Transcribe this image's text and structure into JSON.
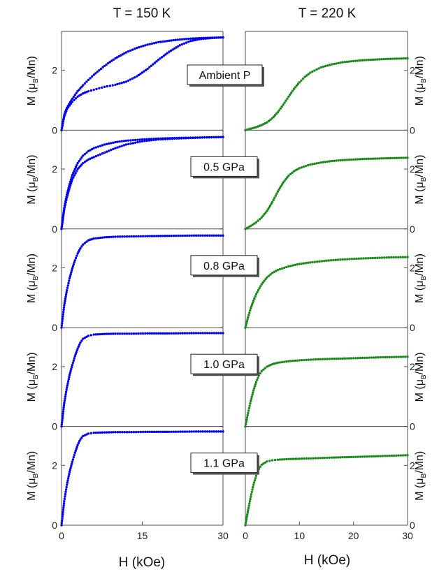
{
  "figure": {
    "left_title": "T = 150 K",
    "right_title": "T = 220 K",
    "left_xlabel": "H (kOe)",
    "right_xlabel": "H (kOe)",
    "ylabel_main": "M (μ",
    "ylabel_sub": "B",
    "ylabel_tail": "/Mn)",
    "panel_labels": [
      "Ambient P",
      "0.5 GPa",
      "0.8 GPa",
      "1.0 GPa",
      "1.1 GPa"
    ],
    "left_color": "#0000ee",
    "right_color": "#1a8a1a"
  },
  "chart_data": [
    {
      "type": "scatter",
      "panel": "Ambient P",
      "temperature": "T = 150 K",
      "xlabel": "",
      "ylabel": "M (μB/Mn)",
      "xlim": [
        0,
        30
      ],
      "ylim": [
        0,
        3.3
      ],
      "yticks": [
        0,
        2
      ],
      "xticks": [],
      "series": [
        {
          "values": [
            [
              0,
              0
            ],
            [
              0.5,
              0.5
            ],
            [
              1,
              0.75
            ],
            [
              2,
              1.05
            ],
            [
              3,
              1.3
            ],
            [
              4,
              1.5
            ],
            [
              5,
              1.68
            ],
            [
              6,
              1.85
            ],
            [
              7,
              2.0
            ],
            [
              8,
              2.15
            ],
            [
              9,
              2.28
            ],
            [
              10,
              2.4
            ],
            [
              12,
              2.6
            ],
            [
              14,
              2.75
            ],
            [
              16,
              2.86
            ],
            [
              18,
              2.94
            ],
            [
              20,
              2.99
            ],
            [
              22,
              3.03
            ],
            [
              24,
              3.06
            ],
            [
              26,
              3.08
            ],
            [
              28,
              3.09
            ],
            [
              30,
              3.1
            ]
          ]
        },
        {
          "values": [
            [
              0,
              0
            ],
            [
              0.5,
              0.45
            ],
            [
              1,
              0.7
            ],
            [
              2,
              0.95
            ],
            [
              3,
              1.12
            ],
            [
              4,
              1.23
            ],
            [
              5,
              1.3
            ],
            [
              6,
              1.35
            ],
            [
              7,
              1.4
            ],
            [
              8,
              1.45
            ],
            [
              9,
              1.48
            ],
            [
              10,
              1.52
            ],
            [
              12,
              1.62
            ],
            [
              14,
              1.8
            ],
            [
              16,
              2.05
            ],
            [
              18,
              2.35
            ],
            [
              20,
              2.62
            ],
            [
              22,
              2.84
            ],
            [
              24,
              2.98
            ],
            [
              26,
              3.05
            ],
            [
              28,
              3.08
            ],
            [
              30,
              3.1
            ]
          ]
        }
      ]
    },
    {
      "type": "scatter",
      "panel": "Ambient P",
      "temperature": "T = 220 K",
      "xlabel": "",
      "ylabel": "M (μB/Mn)",
      "xlim": [
        0,
        30
      ],
      "ylim": [
        0,
        3.3
      ],
      "yticks": [
        0,
        2
      ],
      "xticks": [],
      "series": [
        {
          "values": [
            [
              0,
              0
            ],
            [
              1,
              0.05
            ],
            [
              2,
              0.1
            ],
            [
              3,
              0.17
            ],
            [
              4,
              0.26
            ],
            [
              5,
              0.4
            ],
            [
              6,
              0.6
            ],
            [
              7,
              0.85
            ],
            [
              8,
              1.12
            ],
            [
              9,
              1.38
            ],
            [
              10,
              1.6
            ],
            [
              11,
              1.78
            ],
            [
              12,
              1.92
            ],
            [
              14,
              2.1
            ],
            [
              16,
              2.2
            ],
            [
              18,
              2.27
            ],
            [
              20,
              2.31
            ],
            [
              22,
              2.34
            ],
            [
              24,
              2.36
            ],
            [
              26,
              2.38
            ],
            [
              28,
              2.39
            ],
            [
              30,
              2.4
            ]
          ]
        }
      ]
    },
    {
      "type": "scatter",
      "panel": "0.5 GPa",
      "temperature": "T = 150 K",
      "xlabel": "",
      "ylabel": "M (μB/Mn)",
      "xlim": [
        0,
        30
      ],
      "ylim": [
        0,
        3.3
      ],
      "yticks": [
        0,
        2
      ],
      "xticks": [],
      "series": [
        {
          "values": [
            [
              0,
              0
            ],
            [
              0.5,
              0.7
            ],
            [
              1,
              1.15
            ],
            [
              1.5,
              1.5
            ],
            [
              2,
              1.8
            ],
            [
              3,
              2.2
            ],
            [
              4,
              2.45
            ],
            [
              5,
              2.6
            ],
            [
              6,
              2.7
            ],
            [
              8,
              2.82
            ],
            [
              10,
              2.9
            ],
            [
              12,
              2.95
            ],
            [
              15,
              2.99
            ],
            [
              18,
              3.02
            ],
            [
              21,
              3.04
            ],
            [
              24,
              3.05
            ],
            [
              27,
              3.06
            ],
            [
              30,
              3.07
            ]
          ]
        },
        {
          "values": [
            [
              0,
              0
            ],
            [
              0.5,
              0.65
            ],
            [
              1,
              1.05
            ],
            [
              1.5,
              1.38
            ],
            [
              2,
              1.65
            ],
            [
              3,
              2.0
            ],
            [
              4,
              2.2
            ],
            [
              5,
              2.32
            ],
            [
              6,
              2.4
            ],
            [
              8,
              2.55
            ],
            [
              10,
              2.7
            ],
            [
              12,
              2.82
            ],
            [
              15,
              2.93
            ],
            [
              18,
              2.99
            ],
            [
              21,
              3.02
            ],
            [
              24,
              3.04
            ],
            [
              27,
              3.06
            ],
            [
              30,
              3.07
            ]
          ]
        }
      ]
    },
    {
      "type": "scatter",
      "panel": "0.5 GPa",
      "temperature": "T = 220 K",
      "xlabel": "",
      "ylabel": "M (μB/Mn)",
      "xlim": [
        0,
        30
      ],
      "ylim": [
        0,
        3.3
      ],
      "yticks": [
        0,
        2
      ],
      "xticks": [],
      "series": [
        {
          "values": [
            [
              0,
              0
            ],
            [
              1,
              0.1
            ],
            [
              2,
              0.22
            ],
            [
              3,
              0.38
            ],
            [
              4,
              0.6
            ],
            [
              5,
              0.9
            ],
            [
              6,
              1.25
            ],
            [
              7,
              1.55
            ],
            [
              8,
              1.78
            ],
            [
              9,
              1.93
            ],
            [
              10,
              2.03
            ],
            [
              12,
              2.15
            ],
            [
              14,
              2.22
            ],
            [
              16,
              2.27
            ],
            [
              18,
              2.3
            ],
            [
              20,
              2.32
            ],
            [
              22,
              2.34
            ],
            [
              24,
              2.35
            ],
            [
              26,
              2.36
            ],
            [
              28,
              2.37
            ],
            [
              30,
              2.38
            ]
          ]
        }
      ]
    },
    {
      "type": "scatter",
      "panel": "0.8 GPa",
      "temperature": "T = 150 K",
      "xlabel": "",
      "ylabel": "M (μB/Mn)",
      "xlim": [
        0,
        30
      ],
      "ylim": [
        0,
        3.3
      ],
      "yticks": [
        0,
        2
      ],
      "xticks": [],
      "series": [
        {
          "values": [
            [
              0,
              0
            ],
            [
              0.5,
              0.75
            ],
            [
              1,
              1.25
            ],
            [
              1.5,
              1.65
            ],
            [
              2,
              1.98
            ],
            [
              2.5,
              2.25
            ],
            [
              3,
              2.48
            ],
            [
              3.5,
              2.65
            ],
            [
              4,
              2.78
            ],
            [
              5,
              2.92
            ],
            [
              6,
              2.98
            ],
            [
              8,
              3.02
            ],
            [
              10,
              3.04
            ],
            [
              13,
              3.05
            ],
            [
              16,
              3.06
            ],
            [
              20,
              3.07
            ],
            [
              25,
              3.08
            ],
            [
              30,
              3.08
            ]
          ]
        }
      ]
    },
    {
      "type": "scatter",
      "panel": "0.8 GPa",
      "temperature": "T = 220 K",
      "xlabel": "",
      "ylabel": "M (μB/Mn)",
      "xlim": [
        0,
        30
      ],
      "ylim": [
        0,
        3.3
      ],
      "yticks": [
        0,
        2
      ],
      "xticks": [],
      "series": [
        {
          "values": [
            [
              0,
              0
            ],
            [
              0.5,
              0.35
            ],
            [
              1,
              0.65
            ],
            [
              1.5,
              0.9
            ],
            [
              2,
              1.12
            ],
            [
              3,
              1.45
            ],
            [
              4,
              1.68
            ],
            [
              5,
              1.83
            ],
            [
              6,
              1.93
            ],
            [
              8,
              2.05
            ],
            [
              10,
              2.13
            ],
            [
              12,
              2.18
            ],
            [
              15,
              2.24
            ],
            [
              18,
              2.28
            ],
            [
              21,
              2.31
            ],
            [
              24,
              2.33
            ],
            [
              27,
              2.35
            ],
            [
              30,
              2.36
            ]
          ]
        }
      ]
    },
    {
      "type": "scatter",
      "panel": "1.0 GPa",
      "temperature": "T = 150 K",
      "xlabel": "",
      "ylabel": "M (μB/Mn)",
      "xlim": [
        0,
        30
      ],
      "ylim": [
        0,
        3.3
      ],
      "yticks": [
        0,
        2
      ],
      "xticks": [],
      "series": [
        {
          "values": [
            [
              0,
              0
            ],
            [
              0.5,
              0.78
            ],
            [
              1,
              1.3
            ],
            [
              1.5,
              1.72
            ],
            [
              2,
              2.05
            ],
            [
              2.5,
              2.35
            ],
            [
              3,
              2.6
            ],
            [
              3.5,
              2.8
            ],
            [
              4,
              2.93
            ],
            [
              5,
              3.03
            ],
            [
              6,
              3.07
            ],
            [
              8,
              3.09
            ],
            [
              10,
              3.1
            ],
            [
              13,
              3.1
            ],
            [
              16,
              3.11
            ],
            [
              20,
              3.11
            ],
            [
              25,
              3.12
            ],
            [
              30,
              3.12
            ]
          ]
        }
      ]
    },
    {
      "type": "scatter",
      "panel": "1.0 GPa",
      "temperature": "T = 220 K",
      "xlabel": "",
      "ylabel": "M (μB/Mn)",
      "xlim": [
        0,
        30
      ],
      "ylim": [
        0,
        3.3
      ],
      "yticks": [
        0,
        2
      ],
      "xticks": [],
      "series": [
        {
          "values": [
            [
              0,
              0
            ],
            [
              0.5,
              0.45
            ],
            [
              1,
              0.85
            ],
            [
              1.5,
              1.2
            ],
            [
              2,
              1.48
            ],
            [
              2.5,
              1.7
            ],
            [
              3,
              1.85
            ],
            [
              4,
              2.0
            ],
            [
              5,
              2.08
            ],
            [
              6,
              2.13
            ],
            [
              8,
              2.18
            ],
            [
              10,
              2.21
            ],
            [
              13,
              2.24
            ],
            [
              16,
              2.26
            ],
            [
              20,
              2.28
            ],
            [
              25,
              2.31
            ],
            [
              30,
              2.33
            ]
          ]
        }
      ]
    },
    {
      "type": "scatter",
      "panel": "1.1 GPa",
      "temperature": "T = 150 K",
      "xlabel": "H (kOe)",
      "ylabel": "M (μB/Mn)",
      "xlim": [
        0,
        30
      ],
      "ylim": [
        0,
        3.3
      ],
      "yticks": [
        0,
        2
      ],
      "xticks": [
        0,
        15,
        30
      ],
      "series": [
        {
          "values": [
            [
              0,
              0
            ],
            [
              0.5,
              0.8
            ],
            [
              1,
              1.35
            ],
            [
              1.5,
              1.78
            ],
            [
              2,
              2.12
            ],
            [
              2.5,
              2.42
            ],
            [
              3,
              2.68
            ],
            [
              3.5,
              2.87
            ],
            [
              4,
              2.98
            ],
            [
              5,
              3.06
            ],
            [
              6,
              3.09
            ],
            [
              8,
              3.1
            ],
            [
              10,
              3.11
            ],
            [
              13,
              3.11
            ],
            [
              16,
              3.12
            ],
            [
              20,
              3.12
            ],
            [
              25,
              3.13
            ],
            [
              30,
              3.13
            ]
          ]
        }
      ]
    },
    {
      "type": "scatter",
      "panel": "1.1 GPa",
      "temperature": "T = 220 K",
      "xlabel": "H (kOe)",
      "ylabel": "M (μB/Mn)",
      "xlim": [
        0,
        30
      ],
      "ylim": [
        0,
        3.3
      ],
      "yticks": [
        0,
        2
      ],
      "xticks": [
        0,
        10,
        20,
        30
      ],
      "series": [
        {
          "values": [
            [
              0,
              0
            ],
            [
              0.5,
              0.5
            ],
            [
              1,
              0.95
            ],
            [
              1.5,
              1.35
            ],
            [
              2,
              1.65
            ],
            [
              2.5,
              1.88
            ],
            [
              3,
              2.02
            ],
            [
              4,
              2.13
            ],
            [
              5,
              2.17
            ],
            [
              6,
              2.19
            ],
            [
              8,
              2.21
            ],
            [
              10,
              2.22
            ],
            [
              13,
              2.24
            ],
            [
              16,
              2.26
            ],
            [
              20,
              2.28
            ],
            [
              25,
              2.31
            ],
            [
              30,
              2.34
            ]
          ]
        }
      ]
    }
  ]
}
